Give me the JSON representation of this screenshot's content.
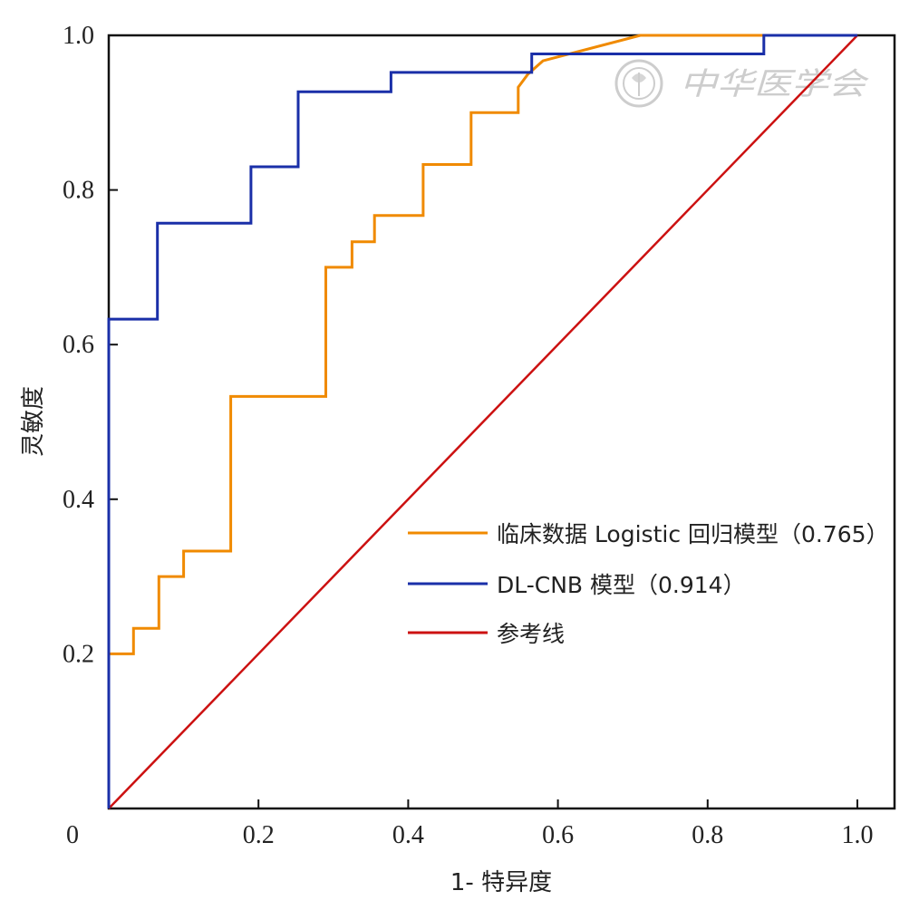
{
  "chart_data": {
    "type": "line",
    "xlabel": "1- 特异度",
    "ylabel": "灵敏度",
    "xlim": [
      0,
      1.05
    ],
    "ylim": [
      0,
      1.0
    ],
    "origin_label": "0",
    "x_ticks": [
      0.2,
      0.4,
      0.6,
      0.8,
      1.0
    ],
    "x_tick_labels": [
      "0.2",
      "0.4",
      "0.6",
      "0.8",
      "1.0"
    ],
    "y_ticks": [
      0.2,
      0.4,
      0.6,
      0.8,
      1.0
    ],
    "y_tick_labels": [
      "0.2",
      "0.4",
      "0.6",
      "0.8",
      "1.0"
    ],
    "grid": false,
    "legend_position": "center-right",
    "series": [
      {
        "name": "临床数据 Logistic 回归模型（0.765）",
        "color": "#f08a00",
        "x": [
          0,
          0,
          0.033,
          0.033,
          0.067,
          0.067,
          0.1,
          0.1,
          0.163,
          0.163,
          0.29,
          0.29,
          0.325,
          0.325,
          0.355,
          0.355,
          0.42,
          0.42,
          0.484,
          0.484,
          0.547,
          0.547,
          0.56,
          0.58,
          0.71,
          1.0
        ],
        "y": [
          0,
          0.2,
          0.2,
          0.233,
          0.233,
          0.3,
          0.3,
          0.333,
          0.333,
          0.533,
          0.533,
          0.7,
          0.7,
          0.733,
          0.733,
          0.767,
          0.767,
          0.833,
          0.833,
          0.9,
          0.9,
          0.933,
          0.95,
          0.967,
          1.0,
          1.0
        ]
      },
      {
        "name": "DL-CNB 模型（0.914）",
        "color": "#1a2fa8",
        "x": [
          0,
          0,
          0.065,
          0.065,
          0.19,
          0.19,
          0.253,
          0.253,
          0.377,
          0.377,
          0.565,
          0.565,
          0.875,
          0.875,
          1.0
        ],
        "y": [
          0,
          0.633,
          0.633,
          0.757,
          0.757,
          0.83,
          0.83,
          0.927,
          0.927,
          0.952,
          0.952,
          0.976,
          0.976,
          1.0,
          1.0
        ]
      },
      {
        "name": "参考线",
        "color": "#cc1111",
        "x": [
          0,
          1.0
        ],
        "y": [
          0,
          1.0
        ]
      }
    ]
  },
  "watermark": {
    "text": "中华医学会",
    "color": "#c8c8c8",
    "icon": "seal-logo-icon"
  }
}
